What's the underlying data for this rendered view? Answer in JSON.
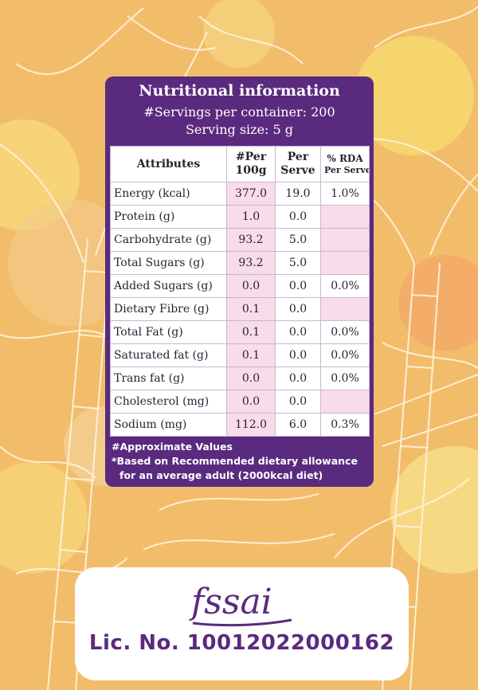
{
  "panel": {
    "title": "Nutritional information",
    "servings": "#Servings per container: 200",
    "serving_size": "Serving size: 5 g"
  },
  "table": {
    "headers": {
      "attributes": "Attributes",
      "per100_line1": "#Per",
      "per100_line2": "100g",
      "perserve_line1": "Per",
      "perserve_line2": "Serve",
      "rda_line1": "% RDA",
      "rda_line2": "Per Serve*"
    },
    "rows": [
      {
        "name": "Energy (kcal)",
        "per100g": "377.0",
        "perserve": "19.0",
        "rda": "1.0%"
      },
      {
        "name": "Protein (g)",
        "per100g": "1.0",
        "perserve": "0.0",
        "rda": ""
      },
      {
        "name": "Carbohydrate (g)",
        "per100g": "93.2",
        "perserve": "5.0",
        "rda": ""
      },
      {
        "name": "Total Sugars (g)",
        "per100g": "93.2",
        "perserve": "5.0",
        "rda": ""
      },
      {
        "name": "Added Sugars (g)",
        "per100g": "0.0",
        "perserve": "0.0",
        "rda": "0.0%"
      },
      {
        "name": "Dietary Fibre (g)",
        "per100g": "0.1",
        "perserve": "0.0",
        "rda": ""
      },
      {
        "name": "Total Fat (g)",
        "per100g": "0.1",
        "perserve": "0.0",
        "rda": "0.0%"
      },
      {
        "name": "Saturated fat (g)",
        "per100g": "0.1",
        "perserve": "0.0",
        "rda": "0.0%"
      },
      {
        "name": "Trans fat (g)",
        "per100g": "0.0",
        "perserve": "0.0",
        "rda": "0.0%"
      },
      {
        "name": "Cholesterol (mg)",
        "per100g": "0.0",
        "perserve": "0.0",
        "rda": ""
      },
      {
        "name": "Sodium (mg)",
        "per100g": "112.0",
        "perserve": "6.0",
        "rda": "0.3%"
      }
    ]
  },
  "footnotes": {
    "approx": "#Approximate Values",
    "rda_note_1": "*Based on Recommended dietary allowance",
    "rda_note_2": "for an average adult (2000kcal diet)"
  },
  "license": {
    "logo_text": "fssai",
    "text": "Lic. No. 10012022000162"
  },
  "colors": {
    "panel_purple": "#5a2a7f",
    "background_orange": "#f2bd6a",
    "cell_pink": "#f8dcea"
  }
}
